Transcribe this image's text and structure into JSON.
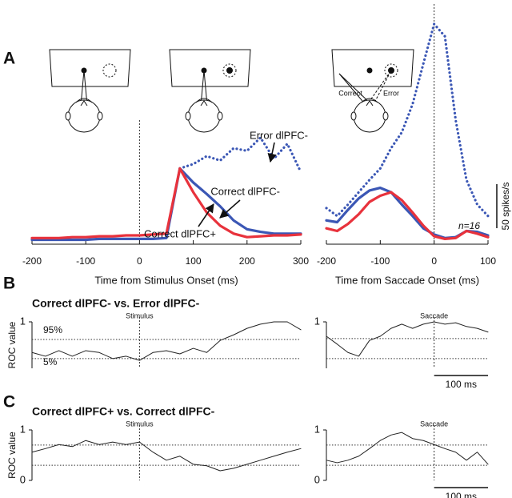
{
  "panel_labels": [
    "A",
    "B",
    "C"
  ],
  "diagram_labels": [
    "Correct",
    "Error"
  ],
  "chart_data": [
    {
      "type": "line",
      "xlabel": "Time from Stimulus Onset (ms)",
      "x": [
        -200,
        -175,
        -150,
        -125,
        -100,
        -75,
        -50,
        -25,
        0,
        25,
        50,
        75,
        100,
        125,
        150,
        175,
        200,
        225,
        250,
        275,
        300
      ],
      "xlim": [
        -200,
        300
      ],
      "xticks": [
        -200,
        -100,
        0,
        100,
        200,
        300
      ],
      "ylim": [
        0,
        260
      ],
      "event": {
        "x": 0
      },
      "series": [
        {
          "name": "Error dlPFC-",
          "color": "#3b57b5",
          "style": "dotted",
          "values": [
            null,
            null,
            null,
            null,
            null,
            null,
            null,
            null,
            null,
            null,
            null,
            86,
            91,
            100,
            95,
            109,
            106,
            121,
            97,
            114,
            82
          ]
        },
        {
          "name": "Correct dlPFC-",
          "color": "#3b57b5",
          "style": "solid",
          "values": [
            5,
            5,
            5,
            5,
            5,
            6,
            6,
            6,
            6,
            6,
            7,
            86,
            70,
            57,
            43,
            27,
            17,
            14,
            12,
            12,
            12
          ]
        },
        {
          "name": "Correct dlPFC+",
          "color": "#e8323c",
          "style": "solid",
          "values": [
            7,
            7,
            7,
            8,
            8,
            9,
            9,
            10,
            10,
            11,
            12,
            86,
            59,
            36,
            21,
            12,
            8,
            9,
            10,
            10,
            11
          ]
        }
      ]
    },
    {
      "type": "line",
      "xlabel": "Time from Saccade Onset (ms)",
      "x": [
        -200,
        -180,
        -160,
        -140,
        -120,
        -100,
        -80,
        -60,
        -40,
        -20,
        0,
        20,
        40,
        60,
        80,
        100
      ],
      "xlim": [
        -200,
        100
      ],
      "xticks": [
        -200,
        -100,
        0,
        100
      ],
      "ylim": [
        0,
        260
      ],
      "event": {
        "x": 0
      },
      "annotation": "n=16",
      "scale_bar": {
        "value": 50,
        "label": "50 spikes/s"
      },
      "series": [
        {
          "color": "#3b57b5",
          "style": "dotted",
          "values": [
            41,
            32,
            45,
            59,
            73,
            86,
            109,
            127,
            159,
            205,
            250,
            236,
            141,
            73,
            45,
            32
          ]
        },
        {
          "color": "#3b57b5",
          "style": "solid",
          "values": [
            27,
            25,
            39,
            52,
            61,
            64,
            59,
            45,
            32,
            18,
            11,
            7,
            8,
            15,
            14,
            10
          ]
        },
        {
          "color": "#e8323c",
          "style": "solid",
          "values": [
            18,
            15,
            23,
            34,
            48,
            55,
            59,
            50,
            36,
            21,
            9,
            6,
            7,
            15,
            12,
            8
          ]
        }
      ]
    },
    {
      "type": "line",
      "title": "Correct dlPFC- vs. Error dlPFC-",
      "ylabel": "ROC value",
      "x": [
        -200,
        -175,
        -150,
        -125,
        -100,
        -75,
        -50,
        -25,
        0,
        25,
        50,
        75,
        100,
        125,
        150,
        175,
        200,
        225,
        250,
        275,
        300
      ],
      "xlim": [
        -200,
        300
      ],
      "ylim": [
        0,
        1
      ],
      "yticks": [
        1
      ],
      "event": {
        "x": 0,
        "label": "Stimulus"
      },
      "thresholds": [
        {
          "name": "95%",
          "value": 0.62
        },
        {
          "name": "5%",
          "value": 0.21
        }
      ],
      "series": [
        {
          "color": "#222",
          "style": "solid",
          "values": [
            0.34,
            0.26,
            0.38,
            0.26,
            0.38,
            0.34,
            0.21,
            0.26,
            0.17,
            0.34,
            0.38,
            0.31,
            0.43,
            0.34,
            0.6,
            0.72,
            0.86,
            0.95,
            1.0,
            1.0,
            0.83
          ]
        }
      ]
    },
    {
      "type": "line",
      "x": [
        -200,
        -180,
        -160,
        -140,
        -120,
        -100,
        -80,
        -60,
        -40,
        -20,
        0,
        20,
        40,
        60,
        80,
        100
      ],
      "xlim": [
        -200,
        100
      ],
      "ylim": [
        0,
        1
      ],
      "yticks": [
        1
      ],
      "event": {
        "x": 0,
        "label": "Saccade"
      },
      "scale_bar": {
        "value": 100,
        "label": "100 ms"
      },
      "thresholds": [
        {
          "value": 0.64
        },
        {
          "value": 0.21
        }
      ],
      "series": [
        {
          "color": "#222",
          "style": "solid",
          "values": [
            0.69,
            0.52,
            0.34,
            0.26,
            0.6,
            0.69,
            0.86,
            0.95,
            0.86,
            0.95,
            1.0,
            0.95,
            0.98,
            0.9,
            0.86,
            0.78
          ]
        }
      ]
    },
    {
      "type": "line",
      "title": "Correct dlPFC+ vs. Correct dlPFC-",
      "ylabel": "ROC value",
      "x": [
        -200,
        -175,
        -150,
        -125,
        -100,
        -75,
        -50,
        -25,
        0,
        25,
        50,
        75,
        100,
        125,
        150,
        175,
        200,
        225,
        250,
        275,
        300
      ],
      "xlim": [
        -200,
        300
      ],
      "ylim": [
        0,
        1
      ],
      "yticks": [
        0,
        1
      ],
      "event": {
        "x": 0,
        "label": "Stimulus"
      },
      "thresholds": [
        {
          "value": 0.7
        },
        {
          "value": 0.3
        }
      ],
      "series": [
        {
          "color": "#222",
          "style": "solid",
          "values": [
            0.56,
            0.63,
            0.71,
            0.67,
            0.79,
            0.71,
            0.76,
            0.71,
            0.76,
            0.56,
            0.4,
            0.48,
            0.32,
            0.29,
            0.19,
            0.24,
            0.32,
            0.4,
            0.48,
            0.56,
            0.63
          ]
        }
      ]
    },
    {
      "type": "line",
      "x": [
        -200,
        -180,
        -160,
        -140,
        -120,
        -100,
        -80,
        -60,
        -40,
        -20,
        0,
        20,
        40,
        60,
        80,
        100
      ],
      "xlim": [
        -200,
        100
      ],
      "ylim": [
        0,
        1
      ],
      "yticks": [
        0,
        1
      ],
      "event": {
        "x": 0,
        "label": "Saccade"
      },
      "scale_bar": {
        "value": 100,
        "label": "100 ms"
      },
      "thresholds": [
        {
          "value": 0.7
        },
        {
          "value": 0.3
        }
      ],
      "series": [
        {
          "color": "#222",
          "style": "solid",
          "values": [
            0.4,
            0.35,
            0.4,
            0.48,
            0.63,
            0.79,
            0.9,
            0.95,
            0.83,
            0.79,
            0.71,
            0.63,
            0.56,
            0.4,
            0.56,
            0.32
          ]
        }
      ]
    }
  ]
}
